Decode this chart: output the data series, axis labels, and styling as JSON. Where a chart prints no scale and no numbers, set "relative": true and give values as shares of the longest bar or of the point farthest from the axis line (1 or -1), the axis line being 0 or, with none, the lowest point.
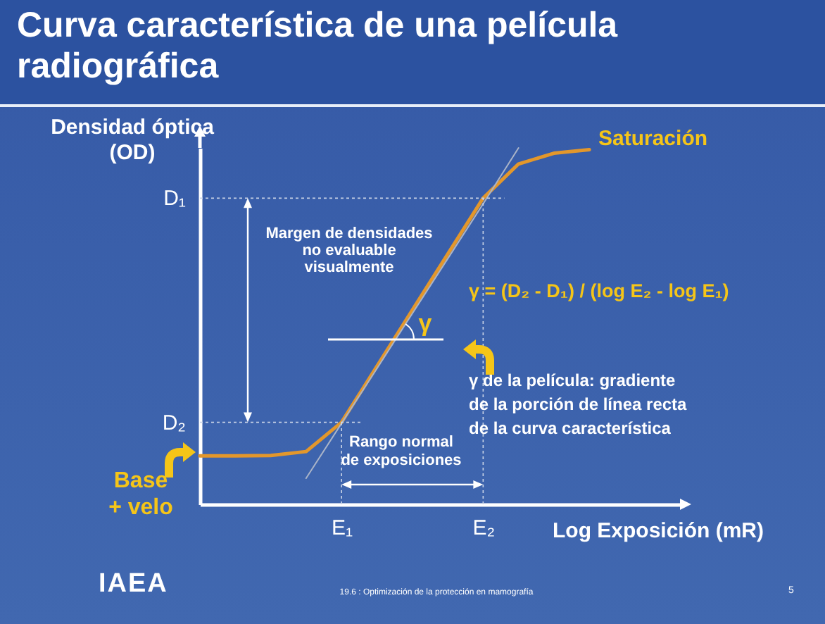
{
  "chart_data": {
    "type": "line",
    "title": "Curva característica de una película radiográfica",
    "xlabel": "Log Exposición (mR)",
    "ylabel": "Densidad óptica (OD)",
    "relative": true,
    "tick_labels": "x",
    "categories": [
      null,
      null,
      null,
      null,
      "E₁",
      null,
      null,
      null,
      "E₂",
      null,
      null,
      null
    ],
    "series": [
      {
        "color": "#e3972b",
        "values": [
          0.136,
          0.136,
          0.137,
          0.148,
          0.23,
          0.387,
          0.545,
          0.702,
          0.859,
          0.955,
          0.985,
          0.995
        ]
      },
      {
        "type": "line",
        "color": "#aab4c8",
        "values": [
          null,
          null,
          null,
          0.073,
          0.227,
          0.381,
          0.535,
          0.689,
          0.843,
          1.0,
          null,
          null
        ]
      }
    ],
    "ref_lines": [
      {
        "axis": "y",
        "value": 0.859,
        "label": "D₁"
      },
      {
        "axis": "y",
        "value": 0.23,
        "label": "D₂"
      },
      {
        "axis": "x",
        "value": "E₁"
      },
      {
        "axis": "x",
        "value": "E₂"
      }
    ],
    "annotations": [
      "Saturación",
      "Base\n+ velo",
      "Margen de densidades\nno evaluable\nvisualmente",
      "γ",
      "γ = (D₂ - D₁) / (log E₂ - log E₁)",
      "γ de la película: gradiente\nde la porción de línea recta\nde la curva característica",
      "Rango normal\nde exposiciones",
      "IAEA",
      "19.6 : Optimización de la protección en mamografía",
      "5"
    ]
  }
}
